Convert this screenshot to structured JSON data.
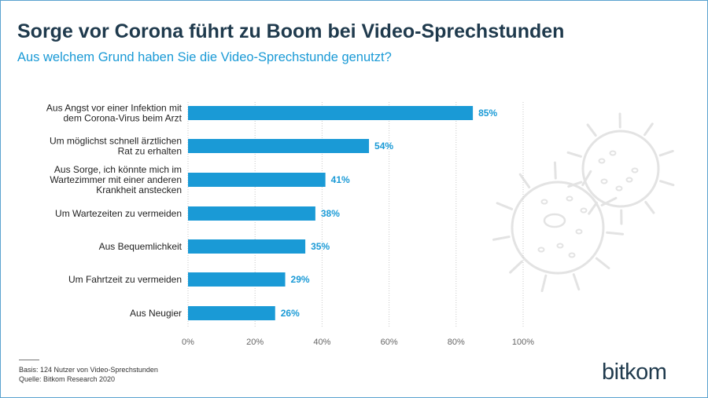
{
  "header": {
    "title": "Sorge vor Corona führt zu Boom bei Video-Sprechstunden",
    "subtitle": "Aus welchem Grund haben Sie die Video-Sprechstunde genutzt?"
  },
  "footer": {
    "basis": "Basis: 124 Nutzer von Video-Sprechstunden",
    "source": "Quelle: Bitkom Research 2020"
  },
  "brand": {
    "logo_text": "bitkom"
  },
  "colors": {
    "bar": "#1a9ad6",
    "title": "#1f3a4d",
    "subtitle": "#1a9ad6",
    "grid": "#c8c8c8",
    "value_label": "#1a9ad6"
  },
  "chart_data": {
    "type": "bar",
    "orientation": "horizontal",
    "categories": [
      [
        "Aus Angst vor einer Infektion mit",
        "dem Corona-Virus beim Arzt"
      ],
      [
        "Um möglichst schnell ärztlichen",
        "Rat zu erhalten"
      ],
      [
        "Aus Sorge, ich könnte mich im",
        "Wartezimmer mit einer anderen",
        "Krankheit anstecken"
      ],
      [
        "Um Wartezeiten zu vermeiden"
      ],
      [
        "Aus Bequemlichkeit"
      ],
      [
        "Um Fahrtzeit zu vermeiden"
      ],
      [
        "Aus Neugier"
      ]
    ],
    "values": [
      85,
      54,
      41,
      38,
      35,
      29,
      26
    ],
    "value_labels": [
      "85%",
      "54%",
      "41%",
      "38%",
      "35%",
      "29%",
      "26%"
    ],
    "xlim": [
      0,
      100
    ],
    "xticks": [
      0,
      20,
      40,
      60,
      80,
      100
    ],
    "xtick_labels": [
      "0%",
      "20%",
      "40%",
      "60%",
      "80%",
      "100%"
    ],
    "grid": true
  }
}
